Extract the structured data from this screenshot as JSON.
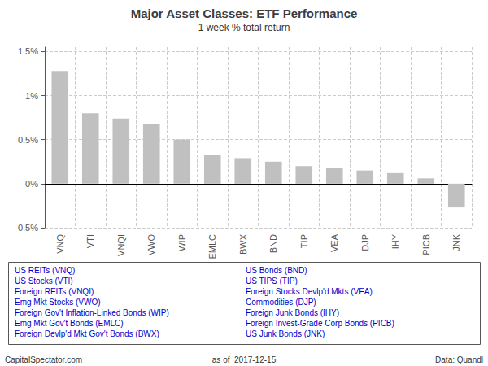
{
  "chart_data": {
    "type": "bar",
    "title": "Major Asset Classes: ETF Performance",
    "subtitle": "1 week % total return",
    "categories": [
      "VNQ",
      "VTI",
      "VNQI",
      "VWO",
      "WIP",
      "EMLC",
      "BWX",
      "BND",
      "TIP",
      "VEA",
      "DJP",
      "IHY",
      "PICB",
      "JNK"
    ],
    "values": [
      1.28,
      0.8,
      0.74,
      0.68,
      0.5,
      0.33,
      0.29,
      0.25,
      0.2,
      0.18,
      0.15,
      0.12,
      0.06,
      -0.27
    ],
    "color": "#c0c0c0",
    "ylim": [
      -0.5,
      1.55
    ],
    "yticks": [
      {
        "value": -0.5,
        "label": "-0.5%"
      },
      {
        "value": 0,
        "label": "0%"
      },
      {
        "value": 0.5,
        "label": "0.5%"
      },
      {
        "value": 1,
        "label": "1%"
      },
      {
        "value": 1.5,
        "label": "1.5%"
      }
    ],
    "grid": true,
    "annotations": [
      {
        "text": "US REITs (VNQ)",
        "color": "#0000cc"
      },
      {
        "text": "US Stocks (VTI)",
        "color": "#0000cc"
      },
      {
        "text": "Foreign REITs (VNQI)",
        "color": "#0000cc"
      },
      {
        "text": "Emg Mkt Stocks (VWO)",
        "color": "#0000cc"
      },
      {
        "text": "Foreign Gov't Inflation-Linked Bonds (WIP)",
        "color": "#0000cc"
      },
      {
        "text": "Emg Mkt Gov't Bonds (EMLC)",
        "color": "#0000cc"
      },
      {
        "text": "Foreign Devlp'd Mkt Gov't Bonds (BWX)",
        "color": "#0000cc"
      },
      {
        "text": "US Bonds (BND)",
        "color": "#0000cc"
      },
      {
        "text": "US TIPS (TIP)",
        "color": "#0000cc"
      },
      {
        "text": "Foreign Stocks Devlp'd Mkts (VEA)",
        "color": "#0000cc"
      },
      {
        "text": "Commodities (DJP)",
        "color": "#0000cc"
      },
      {
        "text": "Foreign Junk Bonds (IHY)",
        "color": "#0000cc"
      },
      {
        "text": "Foreign Invest-Grade Corp Bonds (PICB)",
        "color": "#0000cc"
      },
      {
        "text": "US Junk Bonds (JNK)",
        "color": "#0000cc"
      }
    ],
    "footer": [
      "CapitalSpectator.com",
      "as of  2017-12-15",
      "Data: Quandl"
    ]
  }
}
